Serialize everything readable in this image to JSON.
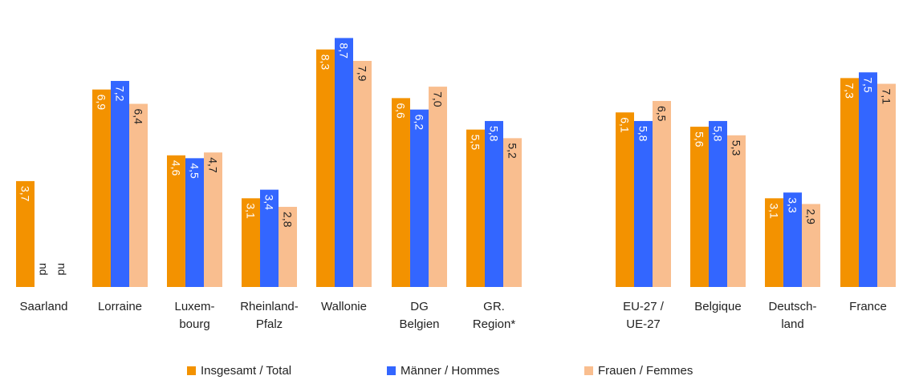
{
  "chart_data": {
    "type": "bar",
    "categories": [
      [
        "Saarland"
      ],
      [
        "Lorraine"
      ],
      [
        "Luxem-",
        "bourg"
      ],
      [
        "Rheinland-",
        "Pfalz"
      ],
      [
        "Wallonie"
      ],
      [
        "DG",
        "Belgien"
      ],
      [
        "GR.",
        "Region*"
      ],
      [
        "EU-27 /",
        "UE-27"
      ],
      [
        "Belgique"
      ],
      [
        "Deutsch-",
        "land"
      ],
      [
        "France"
      ]
    ],
    "series": [
      {
        "name": "Insgesamt / Total",
        "color": "#f39200",
        "values": [
          3.7,
          6.9,
          4.6,
          3.1,
          8.3,
          6.6,
          5.5,
          6.1,
          5.6,
          3.1,
          7.3
        ],
        "labels": [
          "3,7",
          "6,9",
          "4,6",
          "3,1",
          "8,3",
          "6,6",
          "5,5",
          "6,1",
          "5,6",
          "3,1",
          "7,3"
        ]
      },
      {
        "name": "Männer / Hommes",
        "color": "#3366ff",
        "values": [
          null,
          7.2,
          4.5,
          3.4,
          8.7,
          6.2,
          5.8,
          5.8,
          5.8,
          3.3,
          7.5
        ],
        "labels": [
          "nd",
          "7,2",
          "4,5",
          "3,4",
          "8,7",
          "6,2",
          "5,8",
          "5,8",
          "5,8",
          "3,3",
          "7,5"
        ]
      },
      {
        "name": "Frauen / Femmes",
        "color": "#f9be8f",
        "values": [
          null,
          6.4,
          4.7,
          2.8,
          7.9,
          7.0,
          5.2,
          6.5,
          5.3,
          2.9,
          7.1
        ],
        "labels": [
          "nd",
          "6,4",
          "4,7",
          "2,8",
          "7,9",
          "7,0",
          "5,2",
          "6,5",
          "5,3",
          "2,9",
          "7,1"
        ]
      }
    ],
    "ylim": [
      0,
      9
    ],
    "grid": false,
    "legend_position": "bottom"
  }
}
